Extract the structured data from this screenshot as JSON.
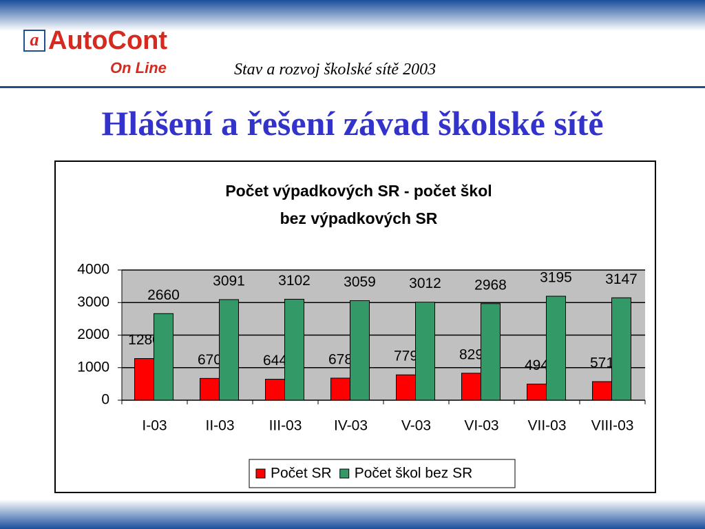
{
  "header": {
    "logo": "AutoCont",
    "logo_sub": "On Line",
    "subtitle": "Stav a rozvoj školské sítě 2003"
  },
  "title": "Hlášení a řešení závad školské sítě",
  "chart_data": {
    "type": "bar",
    "title": "Počet výpadkových SR - počet škol bez výpadkových SR",
    "categories": [
      "I-03",
      "II-03",
      "III-03",
      "IV-03",
      "V-03",
      "VI-03",
      "VII-03",
      "VIII-03"
    ],
    "series": [
      {
        "name": "Počet SR",
        "color": "#ff0000",
        "values": [
          1280,
          670,
          644,
          678,
          779,
          829,
          494,
          571
        ]
      },
      {
        "name": "Počet škol bez SR",
        "color": "#339966",
        "values": [
          2660,
          3091,
          3102,
          3059,
          3012,
          2968,
          3195,
          3147
        ]
      }
    ],
    "ylim": [
      0,
      4000
    ],
    "yticks": [
      0,
      1000,
      2000,
      3000,
      4000
    ],
    "grid": true,
    "legend": "bottom"
  }
}
